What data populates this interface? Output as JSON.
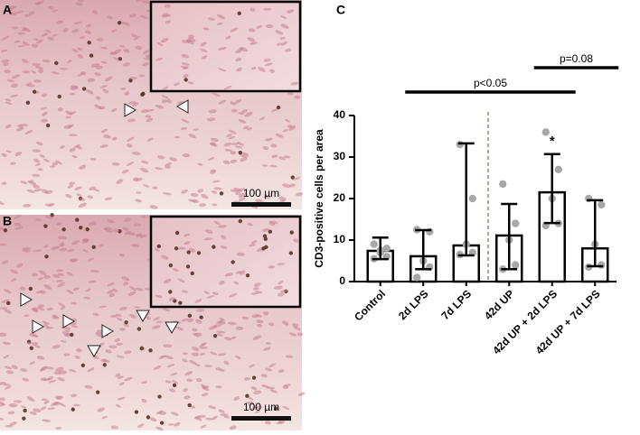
{
  "panel_labels": [
    "A",
    "B",
    "C"
  ],
  "scale_bars": [
    "100 µm",
    "100 µm"
  ],
  "chart_data": {
    "type": "bar",
    "ylabel": "CD3-positive cells per area",
    "categories": [
      "Control",
      "2d LPS",
      "7d LPS",
      "42d UP",
      "42d UP + 2d LPS",
      "42d UP + 7d LPS"
    ],
    "values": [
      7.4,
      6.1,
      8.7,
      11.1,
      21.5,
      8.0
    ],
    "upper": [
      10.6,
      12.4,
      33.3,
      18.7,
      30.7,
      19.6
    ],
    "lower": [
      5.4,
      3.0,
      6.3,
      3.0,
      14.1,
      3.7
    ],
    "points": [
      [
        9,
        8,
        7,
        6,
        5.5,
        7.5
      ],
      [
        12.5,
        12,
        5,
        3.5,
        1
      ],
      [
        33,
        20,
        9,
        7,
        6.5
      ],
      [
        23.5,
        14,
        10,
        4,
        3
      ],
      [
        36,
        27,
        20,
        14,
        13.5
      ],
      [
        20,
        18.5,
        9,
        4,
        3.5
      ]
    ],
    "color": "#000000",
    "point_color": "#a8a8a8",
    "ylim": [
      0,
      40
    ],
    "yticks": [
      0,
      10,
      20,
      30,
      40
    ],
    "annotations": [
      {
        "text": "p<0.05",
        "from": 1,
        "to": 4
      },
      {
        "text": "p=0.08",
        "from": 4,
        "to": 5
      },
      {
        "text": "*",
        "at": 4
      }
    ]
  }
}
